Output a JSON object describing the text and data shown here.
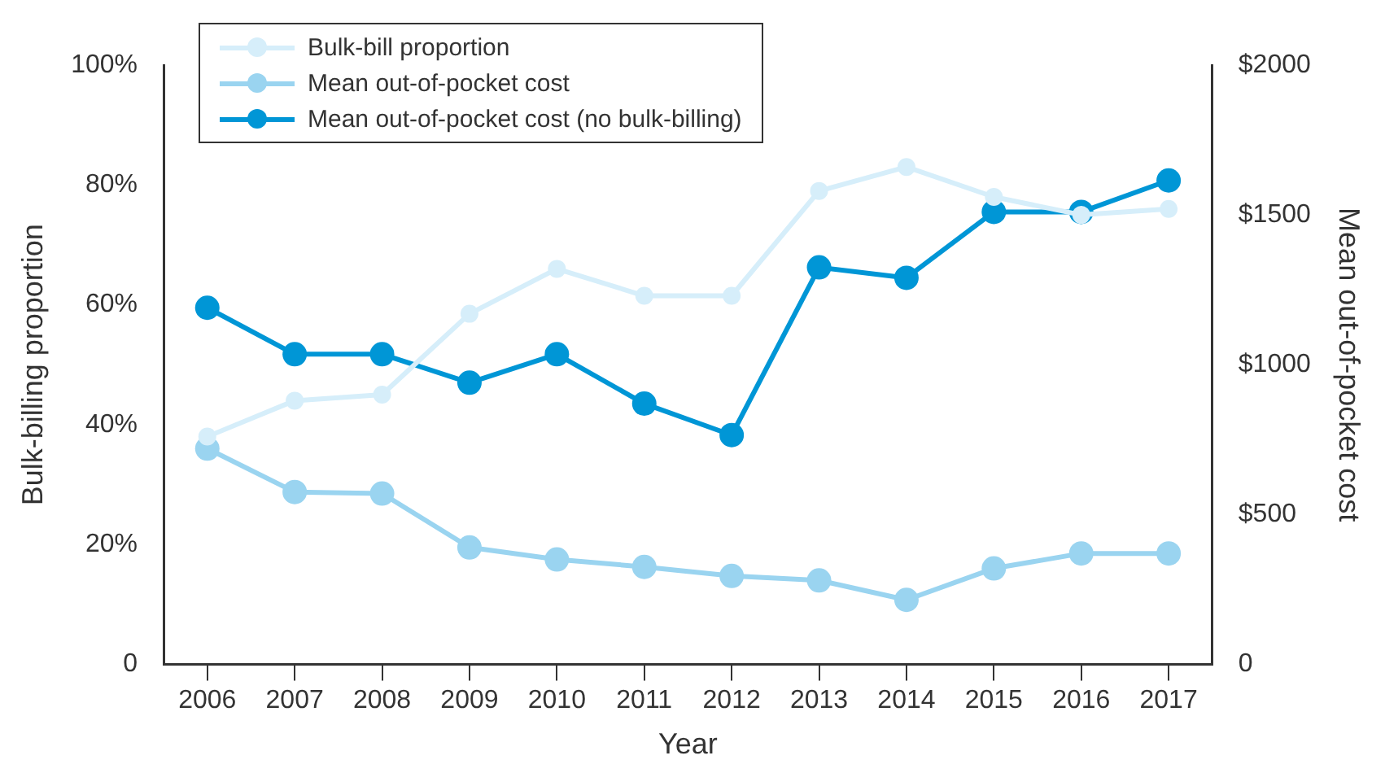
{
  "chart_data": {
    "type": "line",
    "xlabel": "Year",
    "ylabel": "Bulk-billing proportion",
    "y2label": "Mean out-of-pocket cost",
    "categories": [
      "2006",
      "2007",
      "2008",
      "2009",
      "2010",
      "2011",
      "2012",
      "2013",
      "2014",
      "2015",
      "2016",
      "2017"
    ],
    "series": [
      {
        "name": "Bulk-bill proportion",
        "color": "#d6eefa",
        "values": [
          38,
          44,
          45,
          58.5,
          66,
          61.5,
          61.5,
          79,
          83,
          78,
          75,
          76
        ]
      },
      {
        "name": "Mean out-of-pocket cost",
        "color": "#9ad4f0",
        "axis": "y2",
        "values": [
          720,
          575,
          570,
          390,
          350,
          325,
          295,
          280,
          215,
          320,
          370,
          370
        ]
      },
      {
        "name": "Mean out-of-pocket cost (no bulk-billing)",
        "color": "#0096d6",
        "axis": "y2",
        "values": [
          1190,
          1035,
          1035,
          940,
          1035,
          870,
          765,
          1325,
          1290,
          1510,
          1510,
          1615
        ]
      }
    ],
    "ylim": [
      0,
      100
    ],
    "yticks": [
      {
        "value": 0,
        "label": "0"
      },
      {
        "value": 20,
        "label": "20%"
      },
      {
        "value": 40,
        "label": "40%"
      },
      {
        "value": 60,
        "label": "60%"
      },
      {
        "value": 80,
        "label": "80%"
      },
      {
        "value": 100,
        "label": "100%"
      }
    ],
    "y2lim": [
      0,
      2000
    ],
    "y2ticks": [
      {
        "value": 0,
        "label": "0"
      },
      {
        "value": 500,
        "label": "$500"
      },
      {
        "value": 1000,
        "label": "$1000"
      },
      {
        "value": 1500,
        "label": "$1500"
      },
      {
        "value": 2000,
        "label": "$2000"
      }
    ],
    "grid": false,
    "legend": "top left",
    "marker": "circle",
    "line_style": "solid"
  }
}
